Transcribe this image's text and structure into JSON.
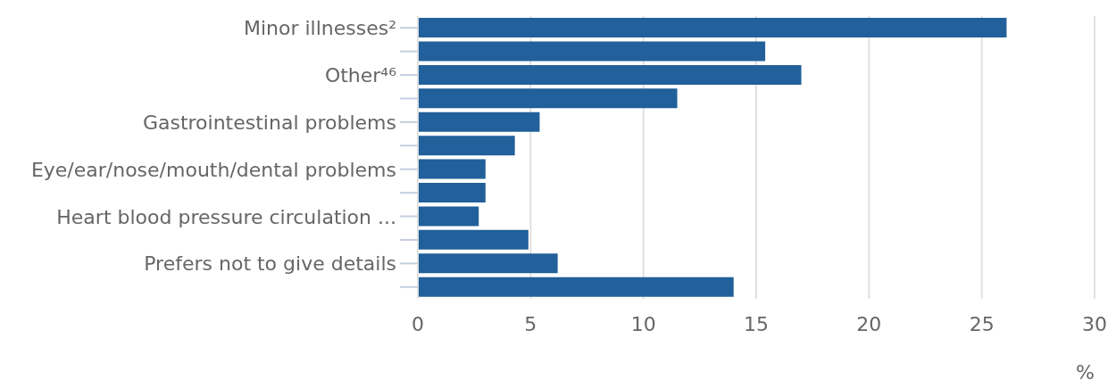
{
  "chart_data": {
    "type": "bar",
    "orientation": "horizontal",
    "xlabel": "%",
    "categories": [
      "Minor illnesses²",
      null,
      "Other⁴⁶",
      null,
      "Gastrointestinal problems",
      null,
      "Eye/ear/nose/mouth/dental problems",
      null,
      "Heart blood pressure circulation ...",
      null,
      "Prefers not to give details",
      null
    ],
    "values": [
      26.1,
      15.4,
      17.0,
      11.5,
      5.4,
      4.3,
      3.0,
      3.0,
      2.7,
      4.9,
      6.2,
      14.0
    ],
    "color": "#21609a",
    "xlim": [
      0,
      30
    ],
    "xticks": [
      0,
      5,
      10,
      15,
      20,
      25,
      30
    ],
    "grid": "x"
  }
}
